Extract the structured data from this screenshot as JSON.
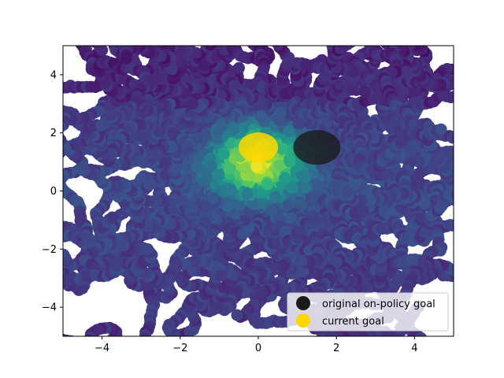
{
  "chart_data": {
    "type": "scatter",
    "title": "",
    "xlabel": "",
    "ylabel": "",
    "xlim": [
      -5,
      5
    ],
    "ylim": [
      -5,
      5
    ],
    "grid": false,
    "x_ticks": [
      -4,
      -2,
      0,
      2,
      4
    ],
    "y_ticks": [
      -4,
      -2,
      0,
      2,
      4
    ],
    "x_tick_labels": [
      "−4",
      "−2",
      "0",
      "2",
      "4"
    ],
    "y_tick_labels": [
      "−4",
      "−2",
      "0",
      "2",
      "4"
    ],
    "colormap": "viridis",
    "background_points": {
      "description_color_rule": "color encodes density/visitation; brighter near current goal",
      "density_center": [
        0.0,
        1.0
      ]
    },
    "markers": [
      {
        "name": "original on-policy goal",
        "x": 1.5,
        "y": 1.5,
        "color": "#1a1a1a"
      },
      {
        "name": "current goal",
        "x": 0.0,
        "y": 1.5,
        "color": "#ffd700"
      }
    ],
    "legend": {
      "placement": "lower-right",
      "entries": [
        {
          "label": "original on-policy goal",
          "color": "#1a1a1a"
        },
        {
          "label": "current goal",
          "color": "#ffd700"
        }
      ]
    }
  }
}
